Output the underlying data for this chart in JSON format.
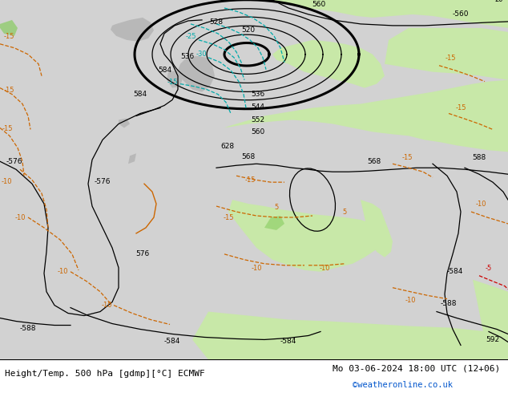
{
  "title_left": "Height/Temp. 500 hPa [gdmp][°C] ECMWF",
  "title_right": "Mo 03-06-2024 18:00 UTC (12+06)",
  "credit": "©weatheronline.co.uk",
  "ocean_color": "#d2d2d2",
  "land_color": "#c8e8a8",
  "land_dark_color": "#b8b8b8",
  "figsize": [
    6.34,
    4.9
  ],
  "dpi": 100
}
